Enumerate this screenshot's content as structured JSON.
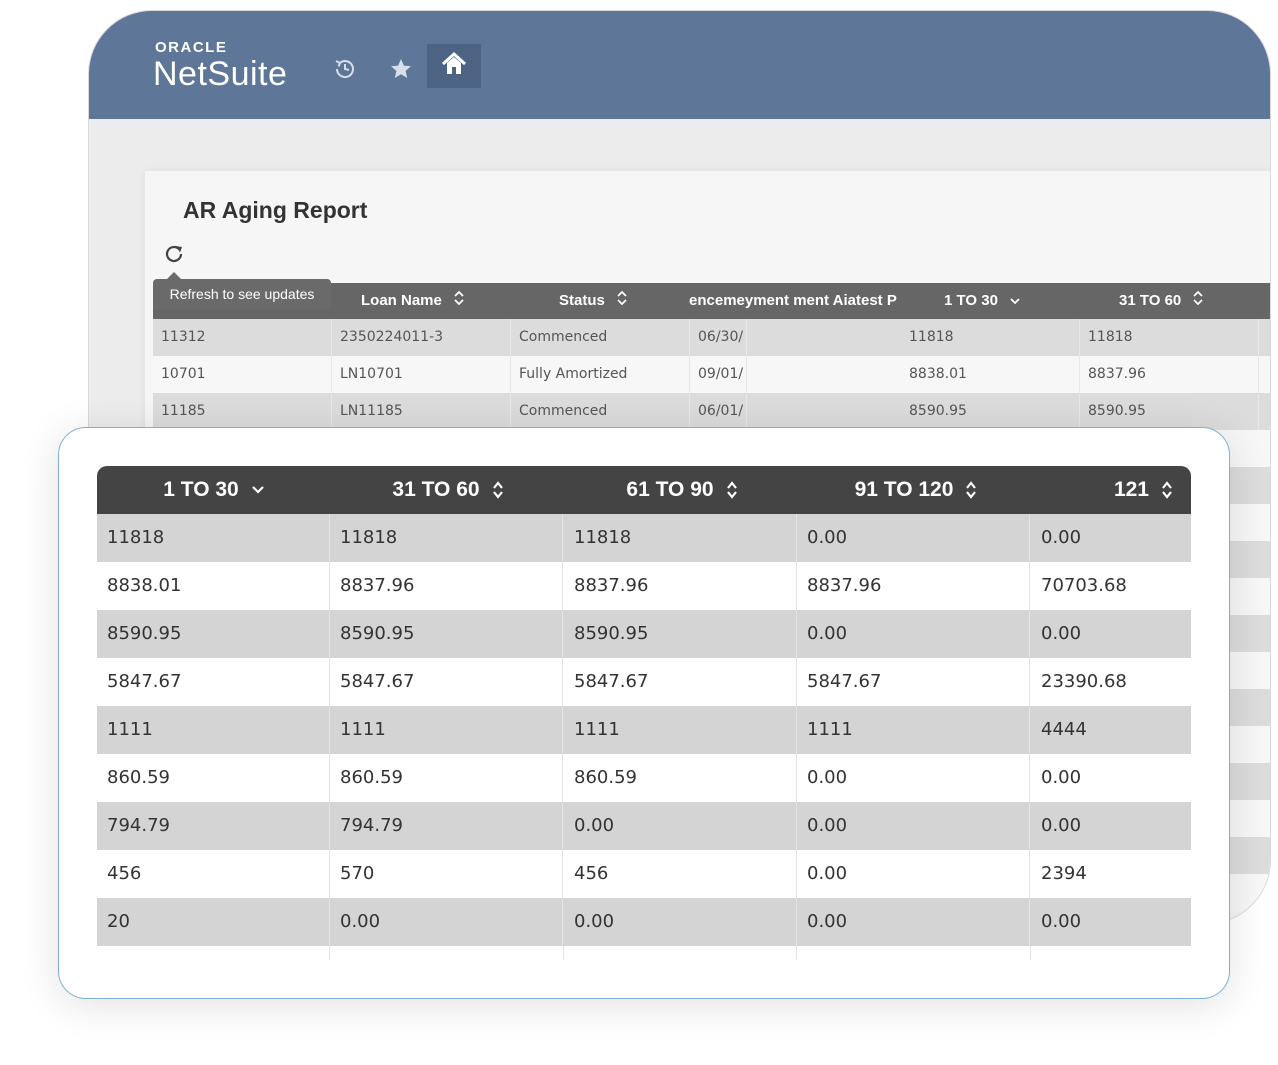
{
  "brand": {
    "oracle": "ORACLE",
    "product": "NetSuite"
  },
  "nav": [
    {
      "icon": "history-clock-icon"
    },
    {
      "icon": "star-icon"
    },
    {
      "icon": "home-icon"
    }
  ],
  "report": {
    "title": "AR Aging Report",
    "refresh_tooltip": "Refresh to see updates"
  },
  "back_table": {
    "headers": [
      "Loan Name",
      "Status",
      "encemeyment ment Aiatest P",
      "1 TO 30",
      "31 TO 60"
    ],
    "rows": [
      [
        "11312",
        "2350224011-3",
        "Commenced",
        "06/30/",
        "11818",
        "11818"
      ],
      [
        "10701",
        "LN10701",
        "Fully Amortized",
        "09/01/",
        "8838.01",
        "8837.96"
      ],
      [
        "11185",
        "LN11185",
        "Commenced",
        "06/01/",
        "8590.95",
        "8590.95"
      ]
    ]
  },
  "front_table": {
    "headers": [
      "1 TO 30",
      "31 TO 60",
      "61 TO 90",
      "91 TO 120",
      "121"
    ],
    "rows": [
      [
        "11818",
        "11818",
        "11818",
        "0.00",
        "0.00"
      ],
      [
        "8838.01",
        "8837.96",
        "8837.96",
        "8837.96",
        "70703.68"
      ],
      [
        "8590.95",
        "8590.95",
        "8590.95",
        "0.00",
        "0.00"
      ],
      [
        "5847.67",
        "5847.67",
        "5847.67",
        "5847.67",
        "23390.68"
      ],
      [
        "1111",
        "1111",
        "1111",
        "1111",
        "4444"
      ],
      [
        "860.59",
        "860.59",
        "860.59",
        "0.00",
        "0.00"
      ],
      [
        "794.79",
        "794.79",
        "0.00",
        "0.00",
        "0.00"
      ],
      [
        "456",
        "570",
        "456",
        "0.00",
        "2394"
      ],
      [
        "20",
        "0.00",
        "0.00",
        "0.00",
        "0.00"
      ]
    ]
  },
  "colors": {
    "topbar": "#5e7698",
    "header_dark": "#444444",
    "row_stripe": "#d4d4d4",
    "card_border": "#7fb1cf"
  }
}
